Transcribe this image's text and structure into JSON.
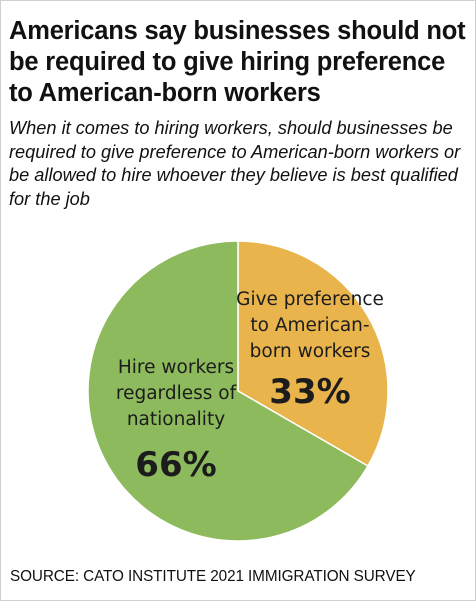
{
  "header": {
    "title": "Americans say businesses should not be required to give hiring preference to American-born workers",
    "subtitle": "When it comes to hiring workers, should businesses be required to give preference to American-born workers or be allowed to hire whoever they believe is best qualified for the job"
  },
  "footer": {
    "source": "SOURCE: CATO INSTITUTE 2021 IMMIGRATION SURVEY"
  },
  "chart_data": {
    "type": "pie",
    "title": "Americans say businesses should not be required to give hiring preference to American-born workers",
    "subtitle": "When it comes to hiring workers, should businesses be required to give preference to American-born workers or be allowed to hire whoever they believe is best qualified for the job",
    "slices": [
      {
        "label_lines": [
          "Give preference",
          "to American-",
          "born workers"
        ],
        "value": 33,
        "value_label": "33%",
        "color": "#e9b44c"
      },
      {
        "label_lines": [
          "Hire workers",
          "regardless of",
          "nationality"
        ],
        "value": 66,
        "value_label": "66%",
        "color": "#8cba5c"
      }
    ],
    "start_angle": "12 o'clock",
    "direction": "clockwise",
    "legend": "none",
    "slice_border": "#ffffff"
  }
}
